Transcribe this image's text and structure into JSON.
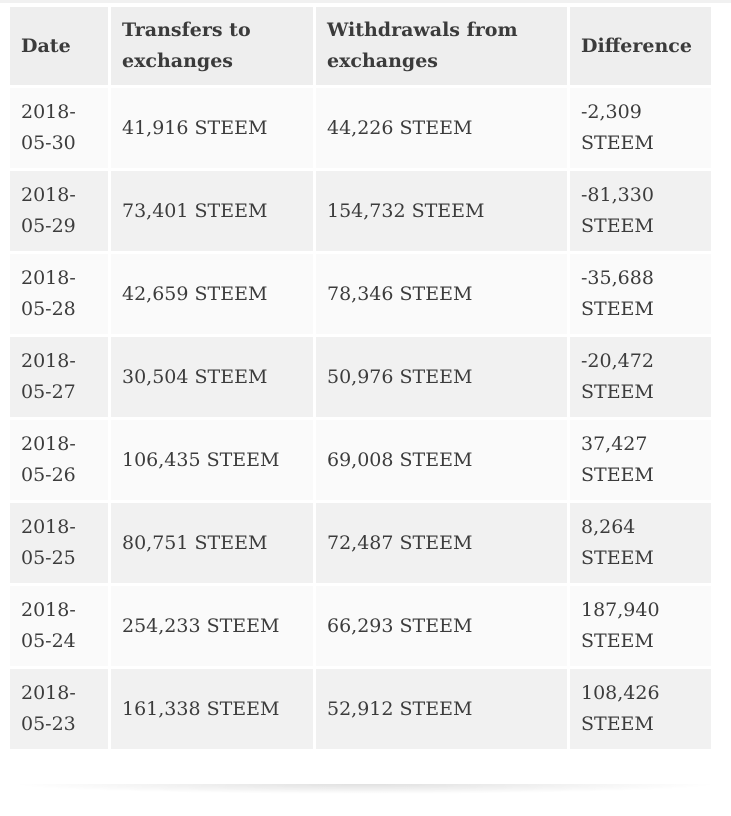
{
  "table": {
    "headers": [
      "Date",
      "Transfers to exchanges",
      "Withdrawals from exchanges",
      "Difference"
    ],
    "rows": [
      {
        "date": "2018-05-30",
        "transfers": "41,916 STEEM",
        "withdrawals": "44,226 STEEM",
        "difference": "-2,309 STEEM"
      },
      {
        "date": "2018-05-29",
        "transfers": "73,401 STEEM",
        "withdrawals": "154,732 STEEM",
        "difference": "-81,330 STEEM"
      },
      {
        "date": "2018-05-28",
        "transfers": "42,659 STEEM",
        "withdrawals": "78,346 STEEM",
        "difference": "-35,688 STEEM"
      },
      {
        "date": "2018-05-27",
        "transfers": "30,504 STEEM",
        "withdrawals": "50,976 STEEM",
        "difference": "-20,472 STEEM"
      },
      {
        "date": "2018-05-26",
        "transfers": "106,435 STEEM",
        "withdrawals": "69,008 STEEM",
        "difference": "37,427 STEEM"
      },
      {
        "date": "2018-05-25",
        "transfers": "80,751 STEEM",
        "withdrawals": "72,487 STEEM",
        "difference": "8,264 STEEM"
      },
      {
        "date": "2018-05-24",
        "transfers": "254,233 STEEM",
        "withdrawals": "66,293 STEEM",
        "difference": "187,940 STEEM"
      },
      {
        "date": "2018-05-23",
        "transfers": "161,338 STEEM",
        "withdrawals": "52,912 STEEM",
        "difference": "108,426 STEEM"
      }
    ]
  }
}
